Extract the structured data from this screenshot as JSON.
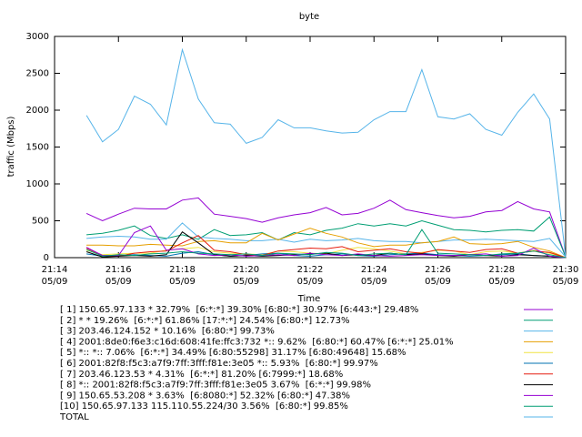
{
  "chart_data": {
    "type": "line",
    "title": "byte",
    "xlabel": "Time",
    "ylabel": "traffic (Mbps)",
    "xlim": [
      854,
      870
    ],
    "ylim": [
      0,
      3000
    ],
    "xticks": [
      {
        "value": 854,
        "label": "21:14"
      },
      {
        "value": 856,
        "label": "21:16"
      },
      {
        "value": 858,
        "label": "21:18"
      },
      {
        "value": 860,
        "label": "21:20"
      },
      {
        "value": 862,
        "label": "21:22"
      },
      {
        "value": 864,
        "label": "21:24"
      },
      {
        "value": 866,
        "label": "21:26"
      },
      {
        "value": 868,
        "label": "21:28"
      },
      {
        "value": 870,
        "label": "21:30"
      }
    ],
    "xdate": "05/09",
    "yticks": [
      0,
      500,
      1000,
      1500,
      2000,
      2500,
      3000
    ],
    "x": [
      855,
      855.5,
      856,
      856.5,
      857,
      857.5,
      858,
      858.5,
      859,
      859.5,
      860,
      860.5,
      861,
      861.5,
      862,
      862.5,
      863,
      863.5,
      864,
      864.5,
      865,
      865.5,
      866,
      866.5,
      867,
      867.5,
      868,
      868.5,
      869,
      869.5,
      870
    ],
    "series": [
      {
        "name": "[ 1] 150.65.97.133 * 32.79%  [6:*:*] 39.30% [6:80:*] 30.97% [6:443:*] 29.48%",
        "color": "#9400d3",
        "values": [
          600,
          500,
          590,
          670,
          660,
          660,
          780,
          810,
          590,
          560,
          530,
          480,
          540,
          580,
          610,
          680,
          580,
          600,
          670,
          780,
          650,
          610,
          570,
          540,
          560,
          620,
          640,
          760,
          660,
          620,
          10
        ]
      },
      {
        "name": "[ 2] * * 19.26%  [6:*:*] 61.86% [17:*:*] 24.54% [6:80:*] 12.73%",
        "color": "#009e73",
        "values": [
          310,
          330,
          370,
          430,
          300,
          260,
          310,
          250,
          380,
          300,
          310,
          340,
          240,
          340,
          310,
          370,
          400,
          460,
          430,
          460,
          430,
          500,
          440,
          380,
          370,
          350,
          370,
          380,
          360,
          550,
          10
        ]
      },
      {
        "name": "[ 3] 203.46.124.152 * 10.16%  [6:80:*] 99.73%",
        "color": "#56b4e9",
        "values": [
          260,
          280,
          290,
          280,
          250,
          250,
          470,
          280,
          260,
          250,
          230,
          230,
          250,
          210,
          250,
          230,
          240,
          260,
          230,
          220,
          220,
          200,
          220,
          240,
          240,
          250,
          240,
          230,
          220,
          260,
          10
        ]
      },
      {
        "name": "[ 4] 2001:8de0:f6e3:c16d:608:41fe:ffc3:732 *:: 9.62%  [6:80:*] 60.47% [6:*:*] 25.01%",
        "color": "#e69f00",
        "values": [
          170,
          170,
          160,
          160,
          180,
          170,
          160,
          220,
          230,
          200,
          200,
          330,
          240,
          320,
          400,
          330,
          280,
          200,
          150,
          170,
          170,
          200,
          220,
          280,
          190,
          180,
          190,
          220,
          140,
          90,
          0
        ]
      },
      {
        "name": "[ 5] *:: *:: 7.06%  [6:*:*] 34.49% [6:80:55298] 31.17% [6:80:49648] 15.68%",
        "color": "#f0e442",
        "values": [
          100,
          40,
          50,
          60,
          60,
          100,
          120,
          140,
          80,
          60,
          50,
          40,
          90,
          80,
          60,
          50,
          100,
          140,
          120,
          90,
          50,
          70,
          100,
          90,
          40,
          80,
          90,
          60,
          100,
          60,
          0
        ]
      },
      {
        "name": "[ 6] 2001:82f8:f5c3:a7f9:7ff:3fff:f81e:3e05 *:: 5.93%  [6:80:*] 99.97%",
        "color": "#0072b2",
        "values": [
          50,
          20,
          30,
          40,
          30,
          20,
          60,
          80,
          40,
          20,
          30,
          50,
          60,
          30,
          20,
          40,
          50,
          30,
          20,
          40,
          50,
          60,
          40,
          30,
          20,
          30,
          40,
          50,
          30,
          20,
          0
        ]
      },
      {
        "name": "[ 7] 203.46.123.53 * 4.31%  [6:*:*] 81.20% [6:7999:*] 18.68%",
        "color": "#e51e10",
        "values": [
          130,
          30,
          20,
          60,
          80,
          90,
          200,
          300,
          100,
          80,
          40,
          30,
          90,
          110,
          130,
          120,
          150,
          80,
          100,
          120,
          80,
          60,
          110,
          90,
          70,
          110,
          120,
          60,
          90,
          70,
          0
        ]
      },
      {
        "name": "[ 8] *:: 2001:82f8:f5c3:a7f9:7ff:3fff:f81e:3e05 3.67%  [6:*:*] 99.98%",
        "color": "#000000",
        "values": [
          80,
          10,
          20,
          30,
          20,
          40,
          350,
          200,
          40,
          20,
          30,
          20,
          30,
          40,
          50,
          60,
          30,
          40,
          30,
          60,
          40,
          50,
          30,
          20,
          40,
          30,
          20,
          40,
          30,
          20,
          0
        ]
      },
      {
        "name": "[ 9] 150.65.53.208 * 3.63%  [6:8080:*] 52.32% [6:80:*] 47.38%",
        "color": "#9400d3",
        "values": [
          140,
          30,
          30,
          340,
          430,
          100,
          120,
          50,
          30,
          40,
          20,
          30,
          40,
          30,
          60,
          40,
          30,
          50,
          30,
          20,
          30,
          40,
          30,
          30,
          40,
          50,
          20,
          30,
          130,
          20,
          0
        ]
      },
      {
        "name": "[10] 150.65.97.133 115.110.55.224/30 3.56%  [6:80:*] 99.85%",
        "color": "#009e73",
        "values": [
          110,
          20,
          40,
          30,
          50,
          60,
          80,
          60,
          50,
          40,
          50,
          30,
          60,
          50,
          40,
          70,
          60,
          30,
          50,
          60,
          40,
          380,
          60,
          50,
          40,
          30,
          50,
          60,
          90,
          40,
          0
        ]
      },
      {
        "name": "TOTAL",
        "color": "#56b4e9",
        "values": [
          1930,
          1570,
          1740,
          2190,
          2080,
          1800,
          2820,
          2150,
          1830,
          1810,
          1550,
          1630,
          1870,
          1760,
          1760,
          1720,
          1690,
          1700,
          1870,
          1980,
          1980,
          2550,
          1910,
          1880,
          1950,
          1740,
          1660,
          1970,
          2220,
          1880,
          10
        ]
      }
    ]
  }
}
